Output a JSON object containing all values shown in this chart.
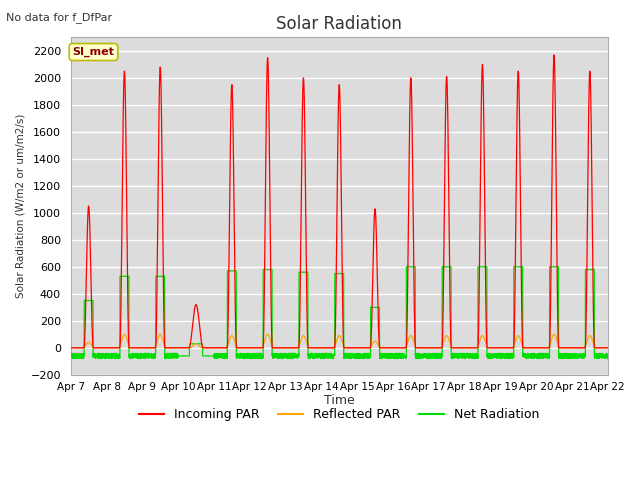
{
  "title": "Solar Radiation",
  "subtitle": "No data for f_DfPar",
  "ylabel": "Solar Radiation (W/m2 or um/m2/s)",
  "xlabel": "Time",
  "ylim": [
    -200,
    2300
  ],
  "yticks": [
    -200,
    0,
    200,
    400,
    600,
    800,
    1000,
    1200,
    1400,
    1600,
    1800,
    2000,
    2200
  ],
  "legend_labels": [
    "Incoming PAR",
    "Reflected PAR",
    "Net Radiation"
  ],
  "box_label": "SI_met",
  "n_days": 15,
  "start_day": 7,
  "bg_color": "#dcdcdc",
  "line_colors": [
    "red",
    "orange",
    "#00dd00"
  ],
  "xtick_labels": [
    "Apr 7",
    "Apr 8",
    "Apr 9",
    "Apr 10",
    "Apr 11",
    "Apr 12",
    "Apr 13",
    "Apr 14",
    "Apr 15",
    "Apr 16",
    "Apr 17",
    "Apr 18",
    "Apr 19",
    "Apr 20",
    "Apr 21",
    "Apr 22"
  ]
}
